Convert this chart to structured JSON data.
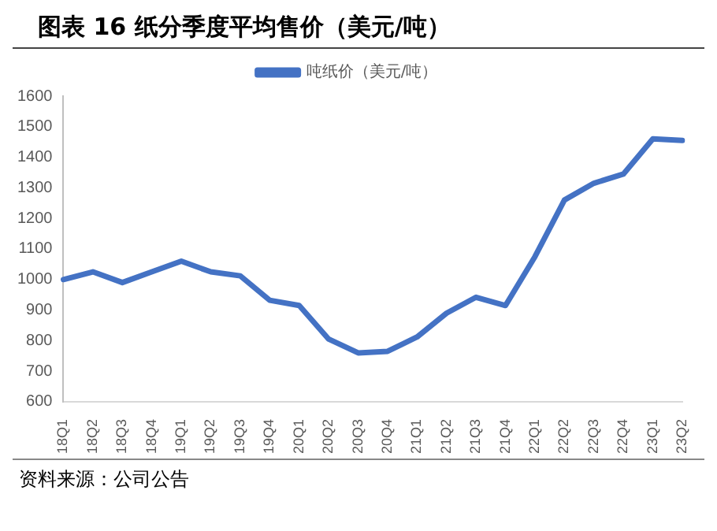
{
  "chart_data": {
    "type": "line",
    "title": "图表 16 纸分季度平均售价（美元/吨）",
    "categories": [
      "18Q1",
      "18Q2",
      "18Q3",
      "18Q4",
      "19Q1",
      "19Q2",
      "19Q3",
      "19Q4",
      "20Q1",
      "20Q2",
      "20Q3",
      "20Q4",
      "21Q1",
      "21Q2",
      "21Q3",
      "21Q4",
      "22Q1",
      "22Q2",
      "22Q3",
      "22Q4",
      "23Q1",
      "23Q2"
    ],
    "series": [
      {
        "name": "吨纸价（美元/吨）",
        "color": "#4472c4",
        "values": [
          1000,
          1025,
          990,
          1025,
          1060,
          1025,
          1012,
          932,
          915,
          805,
          760,
          765,
          812,
          890,
          942,
          915,
          1075,
          1260,
          1315,
          1345,
          1460,
          1455
        ]
      }
    ],
    "ylim": [
      600,
      1600
    ],
    "yticks": [
      600,
      700,
      800,
      900,
      1000,
      1100,
      1200,
      1300,
      1400,
      1500,
      1600
    ],
    "grid": false,
    "legend": "top",
    "marker": "none",
    "line_style": "solid",
    "annotations": [
      "资料来源：公司公告"
    ]
  }
}
